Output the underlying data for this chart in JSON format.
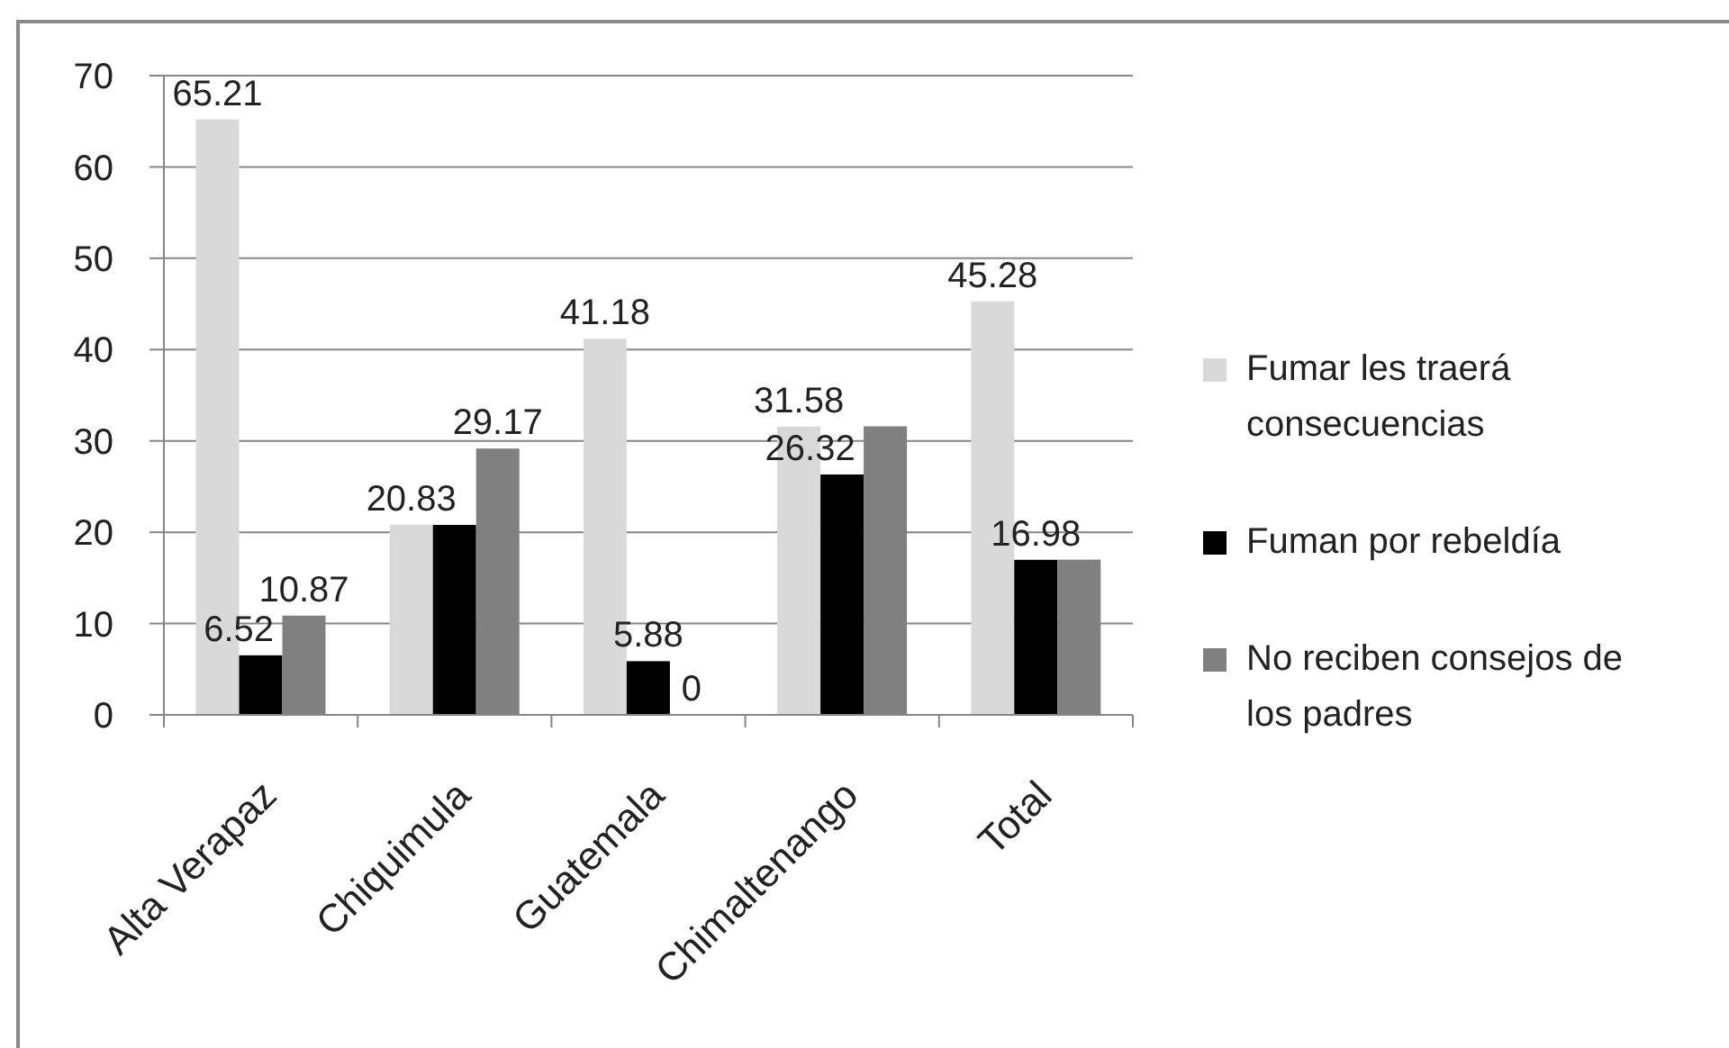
{
  "chart_data": {
    "type": "bar",
    "categories": [
      "Alta Verapaz",
      "Chiquimula",
      "Guatemala",
      "Chimaltenango",
      "Total"
    ],
    "series": [
      {
        "name": "Fumar les traerá consecuencias",
        "color": "#d9d9d9",
        "values": [
          65.21,
          20.83,
          41.18,
          31.58,
          45.28
        ],
        "value_labels": [
          "65.21",
          "20.83",
          "41.18",
          "31.58",
          "45.28"
        ]
      },
      {
        "name": "Fuman por rebeldía",
        "color": "#000000",
        "values": [
          6.52,
          20.8,
          5.88,
          26.32,
          16.98
        ],
        "value_labels": [
          "6.52",
          null,
          "5.88",
          "26.32",
          "16.98"
        ]
      },
      {
        "name": "No reciben consejos de los padres",
        "color": "#808080",
        "values": [
          10.87,
          29.17,
          0,
          31.6,
          17
        ],
        "value_labels": [
          "10.87",
          "29.17",
          "0",
          null,
          null
        ]
      }
    ],
    "ylim": [
      0,
      70
    ],
    "yticks": [
      0,
      10,
      20,
      30,
      40,
      50,
      60,
      70
    ],
    "grid": "y",
    "legend": "right"
  }
}
